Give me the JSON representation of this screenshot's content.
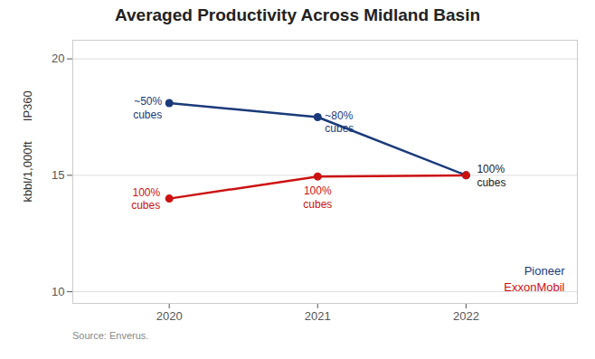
{
  "chart_data": {
    "type": "line",
    "title": "Averaged Productivity Across Midland Basin",
    "x": [
      2020,
      2021,
      2022
    ],
    "series": [
      {
        "name": "Pioneer",
        "color": "#1a3a7a",
        "values": [
          18.1,
          17.5,
          15.0
        ]
      },
      {
        "name": "ExxonMobil",
        "color": "#cc1111",
        "values": [
          14.0,
          14.95,
          15.0
        ]
      }
    ],
    "marker": "circle",
    "annotations": [
      {
        "text": "~50%\ncubes",
        "x": 2020,
        "y": 18.1,
        "color": "#1a3a7a"
      },
      {
        "text": "~80%\ncubes",
        "x": 2021,
        "y": 17.5,
        "color": "#1a3a7a"
      },
      {
        "text": "100%\ncubes",
        "x": 2020,
        "y": 14.0,
        "color": "#cc1111"
      },
      {
        "text": "100%\ncubes",
        "x": 2021,
        "y": 14.95,
        "color": "#cc1111"
      },
      {
        "text": "100%\ncubes",
        "x": 2022,
        "y": 15.0,
        "color": "#222222"
      }
    ],
    "ylabel": [
      "IP360",
      "kbbl/1,000ft"
    ],
    "source": "Source: Enverus.",
    "xlim": [
      2019.35,
      2022.75
    ],
    "xticks": [
      2020,
      2021,
      2022
    ],
    "ylim": [
      9.5,
      20.8
    ],
    "yticks": [
      10,
      15,
      20
    ],
    "grid": true,
    "legend": "lower right"
  }
}
